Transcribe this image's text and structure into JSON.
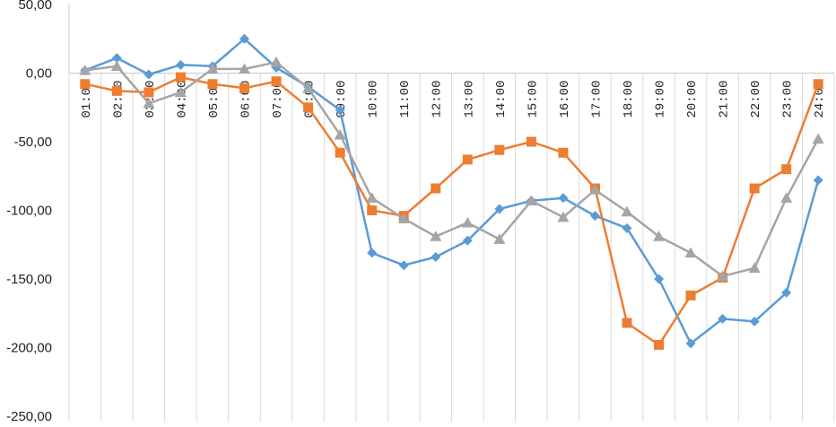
{
  "chart_data": {
    "type": "line",
    "title": "",
    "xlabel": "",
    "ylabel": "",
    "ylim": [
      -250,
      50
    ],
    "yticks": [
      50,
      0,
      -50,
      -100,
      -150,
      -200,
      -250
    ],
    "ytick_labels": [
      "50,00",
      "0,00",
      "-50,00",
      "-100,00",
      "-150,00",
      "-200,00",
      "-250,00"
    ],
    "categories": [
      "01:00",
      "02:00",
      "03:00",
      "04:00",
      "05:00",
      "06:00",
      "07:00",
      "08:00",
      "09:00",
      "10:00",
      "11:00",
      "12:00",
      "13:00",
      "14:00",
      "15:00",
      "16:00",
      "17:00",
      "18:00",
      "19:00",
      "20:00",
      "21:00",
      "22:00",
      "23:00",
      "24:00"
    ],
    "grid": false,
    "legend": "none",
    "series": [
      {
        "marker": "diamond",
        "color": "#5b9bd5",
        "values": [
          2,
          11,
          -1,
          6,
          5,
          25,
          4,
          -10,
          -27,
          -131,
          -140,
          -134,
          -122,
          -99,
          -93,
          -91,
          -104,
          -113,
          -150,
          -197,
          -179,
          -181,
          -160,
          -78
        ]
      },
      {
        "marker": "square",
        "color": "#ed7d31",
        "values": [
          -8,
          -13,
          -14,
          -3,
          -8,
          -11,
          -6,
          -25,
          -58,
          -100,
          -104,
          -84,
          -63,
          -56,
          -50,
          -58,
          -84,
          -182,
          -198,
          -162,
          -149,
          -84,
          -70,
          -8
        ]
      },
      {
        "marker": "triangle",
        "color": "#a5a5a5",
        "values": [
          2,
          5,
          -22,
          -14,
          3,
          3,
          8,
          -11,
          -45,
          -91,
          -106,
          -119,
          -109,
          -121,
          -93,
          -105,
          -85,
          -101,
          -119,
          -131,
          -148,
          -142,
          -91,
          -48
        ]
      }
    ]
  }
}
